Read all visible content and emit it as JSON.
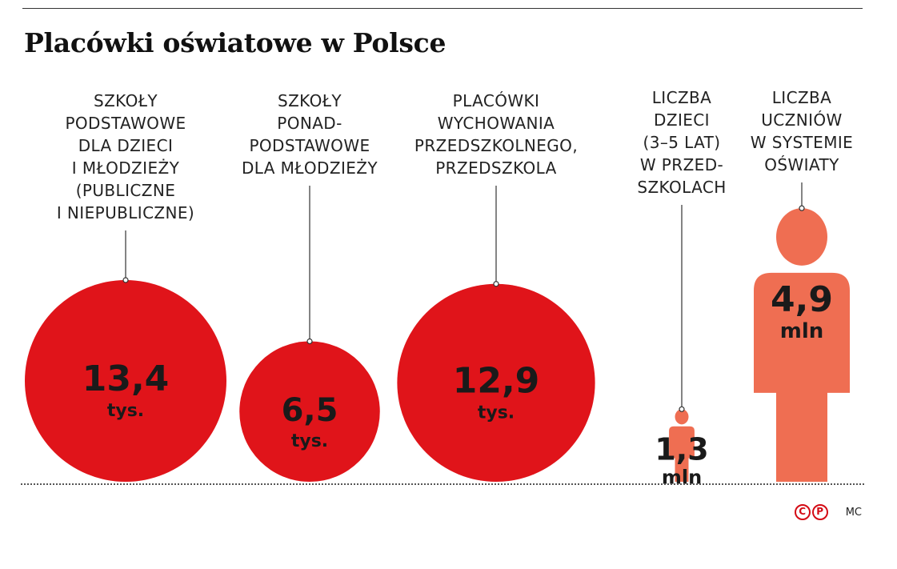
{
  "title": "Placówki oświatowe w Polsce",
  "chart_data": {
    "type": "bubble",
    "title": "Placówki oświatowe w Polsce",
    "items": [
      {
        "label_lines": [
          "SZKOŁY",
          "PODSTAWOWE",
          "DLA DZIECI",
          "I MŁODZIEŻY",
          "(PUBLICZNE",
          "I NIEPUBLICZNE)"
        ],
        "value": 13.4,
        "value_text": "13,4",
        "unit": "tys.",
        "shape": "circle",
        "color": "#e0141a"
      },
      {
        "label_lines": [
          "SZKOŁY",
          "PONAD-",
          "PODSTAWOWE",
          "DLA MŁODZIEŻY"
        ],
        "value": 6.5,
        "value_text": "6,5",
        "unit": "tys.",
        "shape": "circle",
        "color": "#e0141a"
      },
      {
        "label_lines": [
          "PLACÓWKI",
          "WYCHOWANIA",
          "PRZEDSZKOLNEGO,",
          "PRZEDSZKOLA"
        ],
        "value": 12.9,
        "value_text": "12,9",
        "unit": "tys.",
        "shape": "circle",
        "color": "#e0141a"
      },
      {
        "label_lines": [
          "LICZBA",
          "DZIECI",
          "(3–5 LAT)",
          "W PRZED-",
          "SZKOLACH"
        ],
        "value": 1.3,
        "value_text": "1,3",
        "unit": "mln",
        "shape": "person",
        "color": "#ef6e52"
      },
      {
        "label_lines": [
          "LICZBA",
          "UCZNIÓW",
          "W SYSTEMIE",
          "OŚWIATY"
        ],
        "value": 4.9,
        "value_text": "4,9",
        "unit": "mln",
        "shape": "person",
        "color": "#ef6e52"
      }
    ]
  },
  "footer": {
    "logo_letters": [
      "C",
      "P"
    ],
    "credit": "MC"
  },
  "colors": {
    "circle": "#e0141a",
    "person": "#ef6e52",
    "text": "#1a1a1a"
  }
}
